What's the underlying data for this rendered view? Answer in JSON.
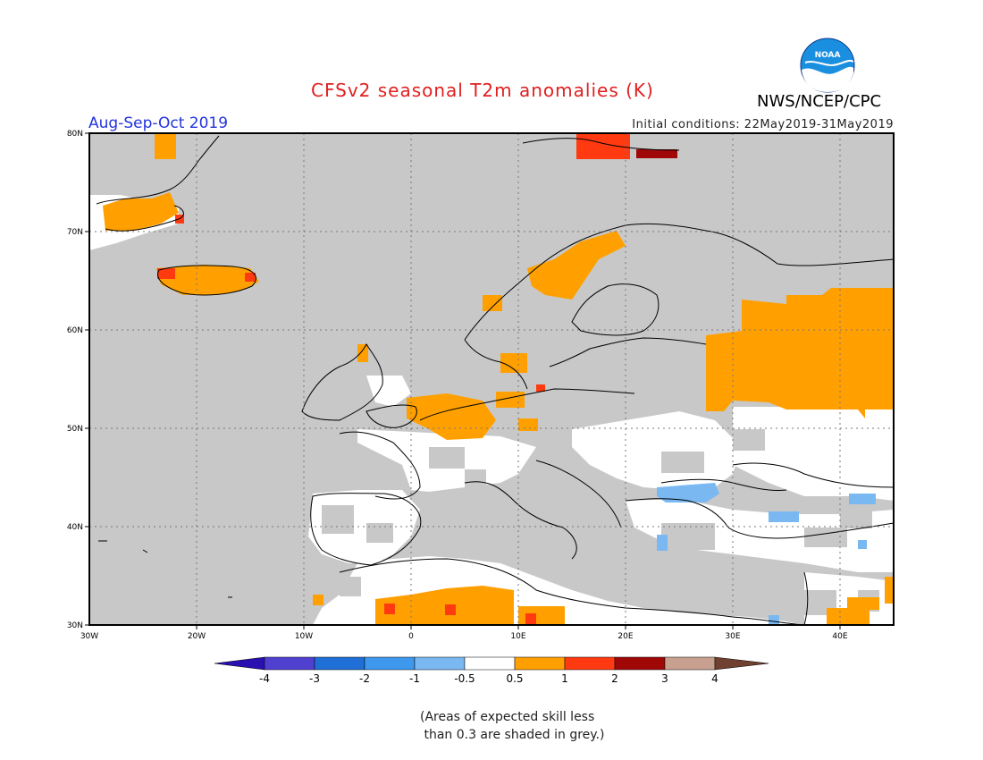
{
  "title": "CFSv2 seasonal T2m anomalies (K)",
  "agency": "NWS/NCEP/CPC",
  "logo_text": "NOAA",
  "season": "Aug-Sep-Oct 2019",
  "initial_conditions": "Initial conditions: 22May2019-31May2019",
  "axes": {
    "lat_labels": [
      "80N",
      "70N",
      "60N",
      "50N",
      "40N",
      "30N"
    ],
    "lon_labels": [
      "30W",
      "20W",
      "10W",
      "0",
      "10E",
      "20E",
      "30E",
      "40E"
    ]
  },
  "legend": {
    "ticks": [
      "-4",
      "-3",
      "-2",
      "-1",
      "-0.5",
      "0.5",
      "1",
      "2",
      "3",
      "4"
    ],
    "colors": [
      "#2a10b0",
      "#5040d0",
      "#1f6fd6",
      "#3d98ee",
      "#7ab8f2",
      "#ffffff",
      "#ffa000",
      "#ff3a10",
      "#a00808",
      "#c8a090",
      "#704030"
    ]
  },
  "note": "(Areas of expected skill less\n than 0.3 are shaded in grey.)",
  "colors": {
    "grey": "#c8c8c8",
    "orange": "#ffa000",
    "red": "#ff3a10",
    "darkred": "#a00808",
    "lightblue": "#7ab8f2"
  }
}
